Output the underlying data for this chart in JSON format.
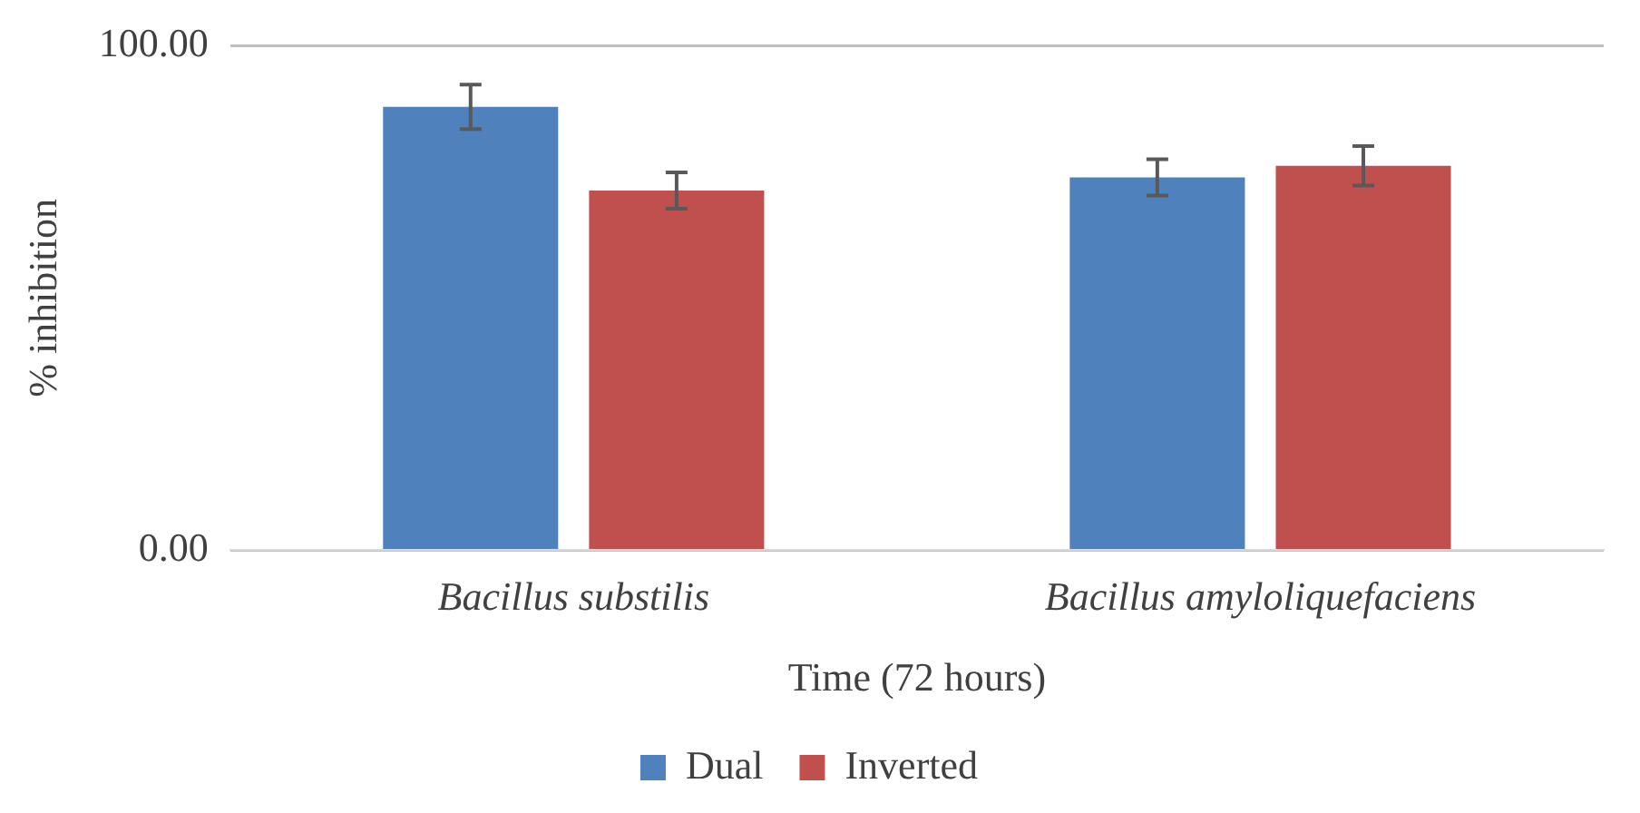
{
  "chart_data": {
    "type": "bar",
    "xlabel": "Time (72 hours)",
    "ylabel": "% inhibition",
    "categories": [
      "Bacillus substilis",
      "Bacillus amyloliquefaciens"
    ],
    "series": [
      {
        "name": "Dual",
        "color": "#4f81bd",
        "values": [
          87.9,
          73.9
        ],
        "errors": [
          4.4,
          3.6
        ]
      },
      {
        "name": "Inverted",
        "color": "#c0504d",
        "values": [
          71.3,
          76.2
        ],
        "errors": [
          3.6,
          3.9
        ]
      }
    ],
    "ylim": [
      0,
      100
    ],
    "yticks": [
      {
        "value": 0,
        "label": "0.00"
      },
      {
        "value": 100,
        "label": "100.00"
      }
    ],
    "grid": "y",
    "legend": "bottom"
  }
}
